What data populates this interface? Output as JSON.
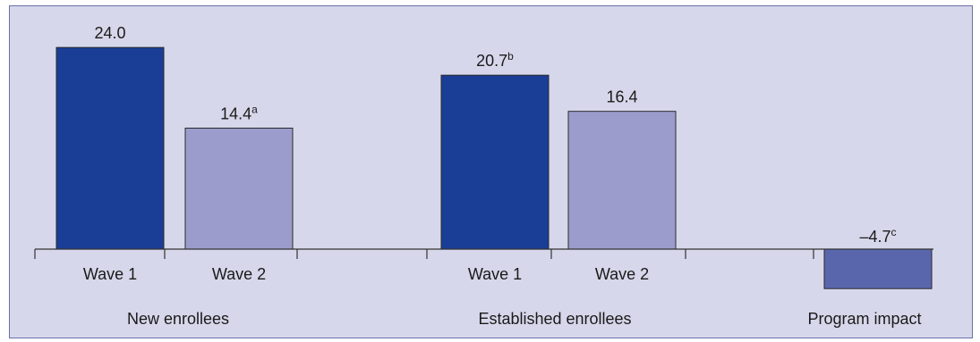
{
  "chart_data": {
    "type": "bar",
    "title": "",
    "xlabel": "",
    "ylabel": "",
    "groups": [
      {
        "name": "New enrollees",
        "bars": [
          {
            "category": "Wave 1",
            "value": 24.0,
            "value_label": "24.0",
            "note": "",
            "color": "#1a3d96"
          },
          {
            "category": "Wave 2",
            "value": 14.4,
            "value_label": "14.4",
            "note": "a",
            "color": "#9b9ccc"
          }
        ]
      },
      {
        "name": "Established enrollees",
        "bars": [
          {
            "category": "Wave 1",
            "value": 20.7,
            "value_label": "20.7",
            "note": "b",
            "color": "#1a3d96"
          },
          {
            "category": "Wave 2",
            "value": 16.4,
            "value_label": "16.4",
            "note": "",
            "color": "#9b9ccc"
          }
        ]
      },
      {
        "name": "Program impact",
        "bars": [
          {
            "category": "",
            "value": -4.7,
            "value_label": "–4.7",
            "note": "c",
            "color": "#5a66ac"
          }
        ]
      }
    ],
    "ylim": [
      -4.7,
      24.0
    ],
    "grid": false,
    "legend": "none"
  },
  "colors": {
    "background": "#d6d7ea",
    "border": "#6b6fa8",
    "axis": "#333333",
    "bar_outline": "#2a2a2a"
  }
}
